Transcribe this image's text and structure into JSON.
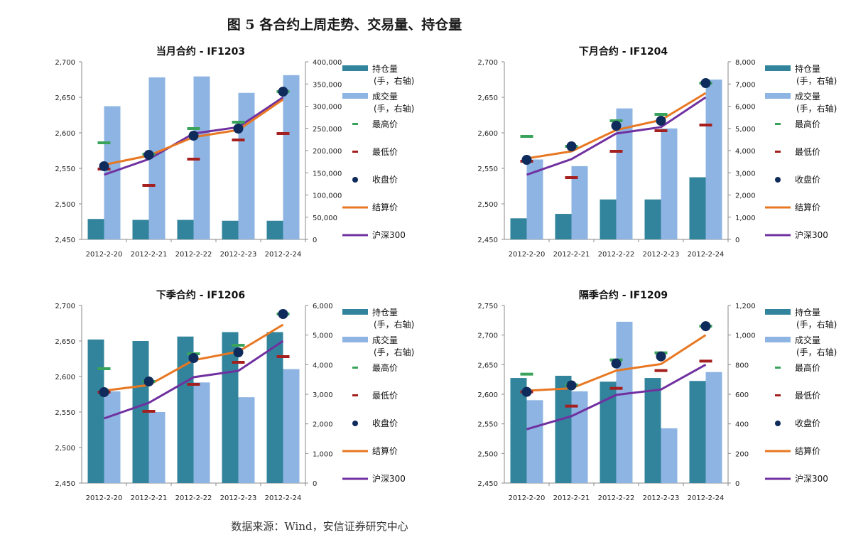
{
  "figure_title": "图 5 各合约上周走势、交易量、持仓量",
  "source_note": "数据来源：Wind，安信证券研究中心",
  "colors": {
    "open_interest": "#31849b",
    "volume": "#8db4e2",
    "high": "#3aa35b",
    "low": "#a51f1f",
    "close": "#0f2b5b",
    "settle": "#e87722",
    "hs300": "#7030a0"
  },
  "legend_labels": {
    "open_interest": [
      "持仓量",
      "(手，右轴)"
    ],
    "volume": [
      "成交量",
      "(手，右轴)"
    ],
    "high": "最高价",
    "low": "最低价",
    "close": "收盘价",
    "settle": "结算价",
    "hs300": "沪深300"
  },
  "chart_data": [
    {
      "type": "bar+line",
      "title": "当月合约 - IF1203",
      "categories": [
        "2012-2-20",
        "2012-2-21",
        "2012-2-22",
        "2012-2-23",
        "2012-2-24"
      ],
      "ylim": [
        2450,
        2700
      ],
      "yticks": [
        2450,
        2500,
        2550,
        2600,
        2650,
        2700
      ],
      "ytick_labels": [
        "2,450",
        "2,500",
        "2,550",
        "2,600",
        "2,650",
        "2,700"
      ],
      "y2lim": [
        0,
        400000
      ],
      "y2ticks": [
        0,
        50000,
        100000,
        150000,
        200000,
        250000,
        300000,
        350000,
        400000
      ],
      "y2tick_labels": [
        "0",
        "50,000",
        "100,000",
        "150,000",
        "200,000",
        "250,000",
        "300,000",
        "350,000",
        "400,000"
      ],
      "open_interest": [
        46000,
        44000,
        44000,
        42000,
        42000
      ],
      "volume": [
        300000,
        365000,
        367000,
        330000,
        370000
      ],
      "high": [
        2586,
        2570,
        2606,
        2615,
        2658
      ],
      "low": [
        2549,
        2526,
        2563,
        2590,
        2599
      ],
      "close": [
        2553,
        2569,
        2596,
        2606,
        2658
      ],
      "settle": [
        2555,
        2568,
        2594,
        2604,
        2647
      ],
      "hs300": [
        2541,
        2563,
        2599,
        2608,
        2650
      ],
      "legend": [
        "open_interest",
        "volume",
        "high",
        "low",
        "close",
        "settle",
        "hs300"
      ]
    },
    {
      "type": "bar+line",
      "title": "下月合约 - IF1204",
      "categories": [
        "2012-2-20",
        "2012-2-21",
        "2012-2-22",
        "2012-2-23",
        "2012-2-24"
      ],
      "ylim": [
        2450,
        2700
      ],
      "yticks": [
        2450,
        2500,
        2550,
        2600,
        2650,
        2700
      ],
      "ytick_labels": [
        "2,450",
        "2,500",
        "2,550",
        "2,600",
        "2,650",
        "2,700"
      ],
      "y2lim": [
        0,
        8000
      ],
      "y2ticks": [
        0,
        1000,
        2000,
        3000,
        4000,
        5000,
        6000,
        7000,
        8000
      ],
      "y2tick_labels": [
        "0",
        "1,000",
        "2,000",
        "3,000",
        "4,000",
        "5,000",
        "6,000",
        "7,000",
        "8,000"
      ],
      "open_interest": [
        950,
        1150,
        1800,
        1800,
        2800
      ],
      "volume": [
        3600,
        3300,
        5900,
        5000,
        7200
      ],
      "high": [
        2595,
        2581,
        2617,
        2626,
        2670
      ],
      "low": [
        2560,
        2537,
        2574,
        2603,
        2611
      ],
      "close": [
        2562,
        2581,
        2610,
        2617,
        2670
      ],
      "settle": [
        2564,
        2574,
        2604,
        2618,
        2656
      ],
      "hs300": [
        2541,
        2563,
        2599,
        2608,
        2650
      ],
      "legend": [
        "open_interest",
        "volume",
        "high",
        "low",
        "close",
        "settle",
        "hs300"
      ]
    },
    {
      "type": "bar+line",
      "title": "下季合约 - IF1206",
      "categories": [
        "2012-2-20",
        "2012-2-21",
        "2012-2-22",
        "2012-2-23",
        "2012-2-24"
      ],
      "ylim": [
        2450,
        2700
      ],
      "yticks": [
        2450,
        2500,
        2550,
        2600,
        2650,
        2700
      ],
      "ytick_labels": [
        "2,450",
        "2,500",
        "2,550",
        "2,600",
        "2,650",
        "2,700"
      ],
      "y2lim": [
        0,
        6000
      ],
      "y2ticks": [
        0,
        1000,
        2000,
        3000,
        4000,
        5000,
        6000
      ],
      "y2tick_labels": [
        "0",
        "1,000",
        "2,000",
        "3,000",
        "4,000",
        "5,000",
        "6,000"
      ],
      "open_interest": [
        4850,
        4800,
        4950,
        5100,
        5100
      ],
      "volume": [
        3100,
        2400,
        3400,
        2900,
        3850
      ],
      "high": [
        2611,
        2593,
        2632,
        2644,
        2688
      ],
      "low": [
        2578,
        2551,
        2589,
        2620,
        2628
      ],
      "close": [
        2578,
        2593,
        2626,
        2634,
        2688
      ],
      "settle": [
        2580,
        2588,
        2623,
        2635,
        2673
      ],
      "hs300": [
        2541,
        2563,
        2599,
        2608,
        2650
      ],
      "legend": [
        "open_interest",
        "volume",
        "high",
        "low",
        "close",
        "settle",
        "hs300"
      ]
    },
    {
      "type": "bar+line",
      "title": "隔季合约 - IF1209",
      "categories": [
        "2012-2-20",
        "2012-2-21",
        "2012-2-22",
        "2012-2-23",
        "2012-2-24"
      ],
      "ylim": [
        2450,
        2750
      ],
      "yticks": [
        2450,
        2500,
        2550,
        2600,
        2650,
        2700,
        2750
      ],
      "ytick_labels": [
        "2,450",
        "2,500",
        "2,550",
        "2,600",
        "2,650",
        "2,700",
        "2,750"
      ],
      "y2lim": [
        0,
        1200
      ],
      "y2ticks": [
        0,
        200,
        400,
        600,
        800,
        1000,
        1200
      ],
      "y2tick_labels": [
        "0",
        "200",
        "400",
        "600",
        "800",
        "1,000",
        "1,200"
      ],
      "open_interest": [
        710,
        725,
        685,
        710,
        690
      ],
      "volume": [
        560,
        620,
        1090,
        370,
        750
      ],
      "high": [
        2634,
        2616,
        2658,
        2670,
        2715
      ],
      "low": [
        2604,
        2580,
        2610,
        2640,
        2656
      ],
      "close": [
        2604,
        2615,
        2652,
        2664,
        2715
      ],
      "settle": [
        2606,
        2610,
        2640,
        2651,
        2700
      ],
      "hs300": [
        2541,
        2563,
        2599,
        2608,
        2650
      ],
      "legend": [
        "open_interest",
        "volume",
        "high",
        "low",
        "close",
        "settle",
        "hs300"
      ]
    }
  ]
}
